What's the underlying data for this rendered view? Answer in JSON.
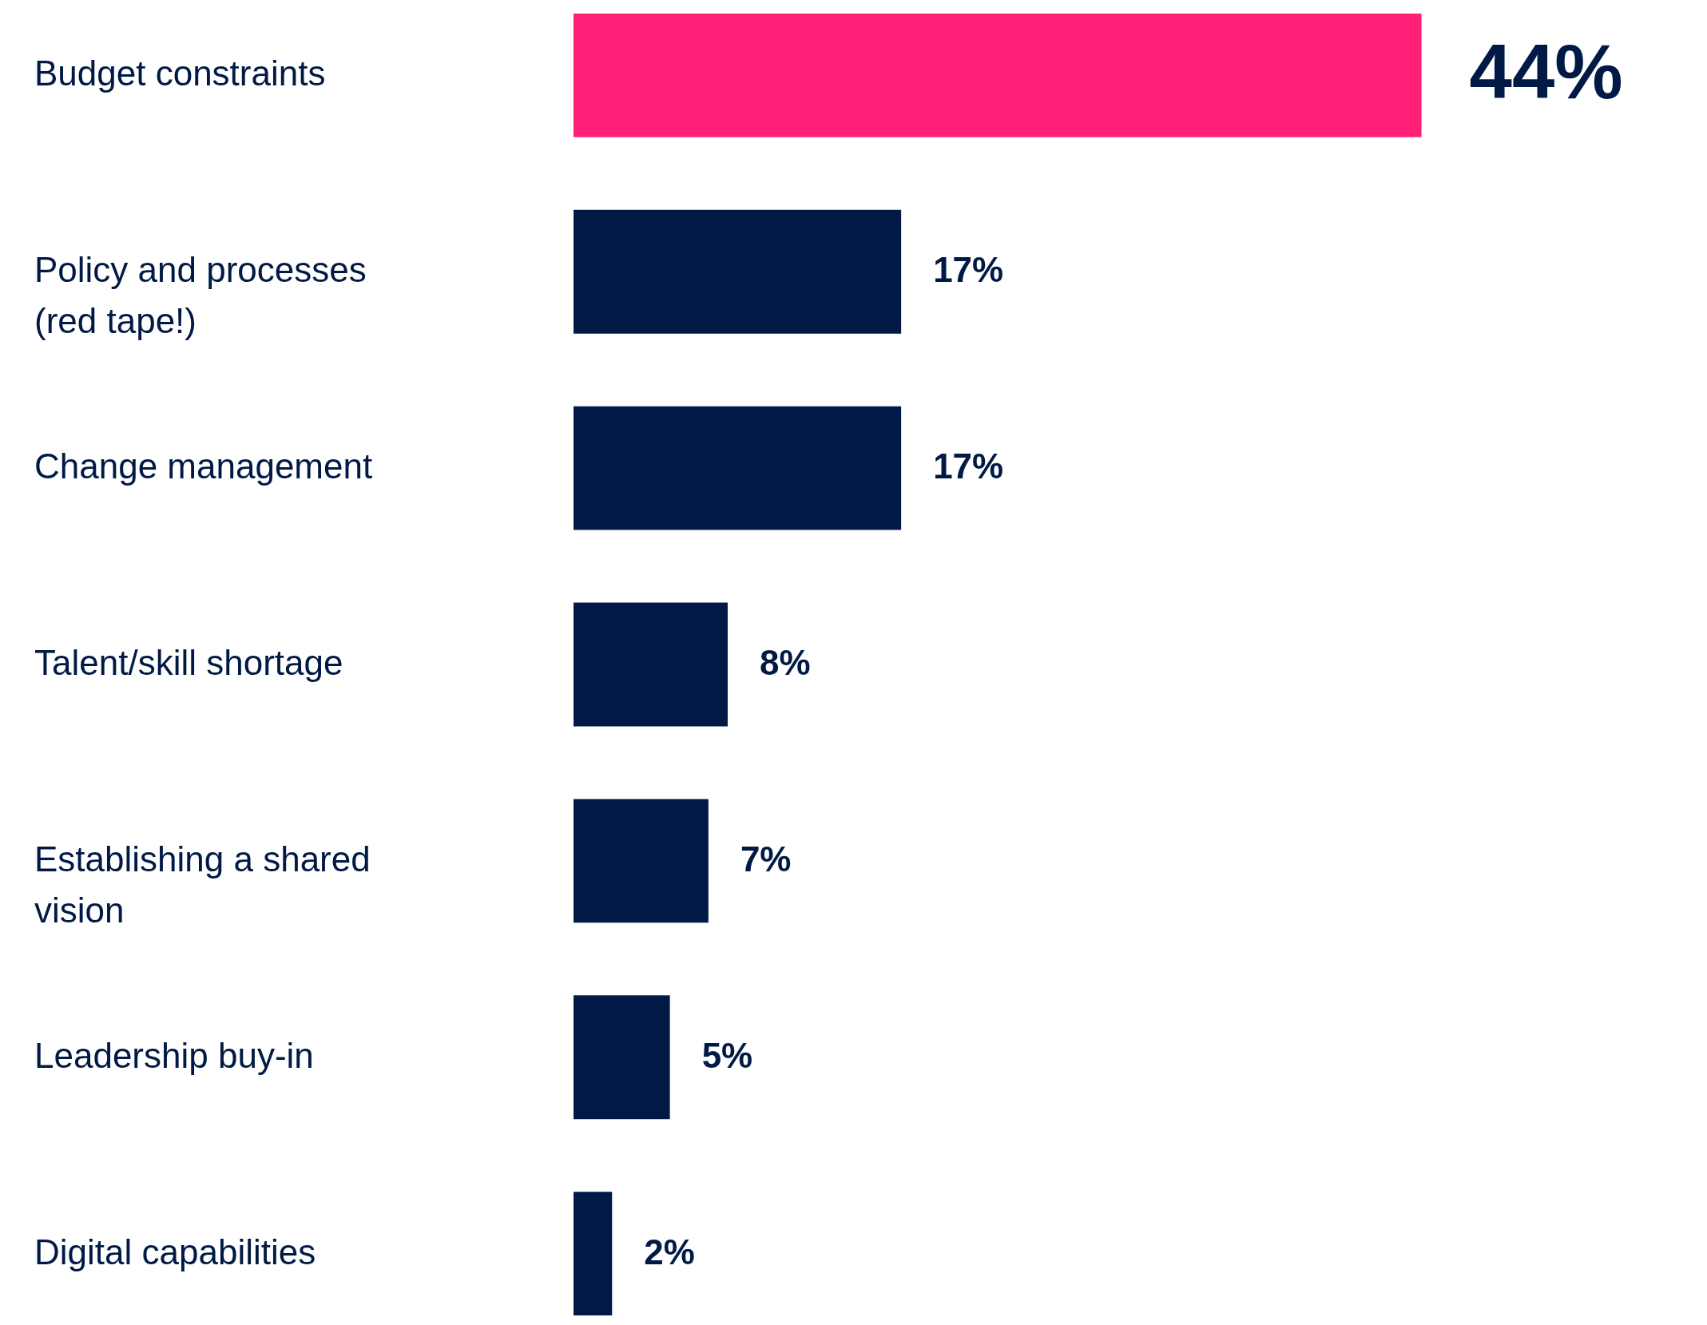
{
  "chart_data": {
    "type": "bar",
    "orientation": "horizontal",
    "categories": [
      "Budget constraints",
      "Policy and processes (red tape!)",
      "Change management",
      "Talent/skill shortage",
      "Establishing a shared vision",
      "Leadership buy-in",
      "Digital capabilities"
    ],
    "values": [
      44,
      17,
      17,
      8,
      7,
      5,
      2
    ],
    "colors": [
      "#ff1f77",
      "#001a45",
      "#001a45",
      "#001a45",
      "#001a45",
      "#001a45",
      "#001a45"
    ],
    "value_labels": [
      "44%",
      "17%",
      "17%",
      "8%",
      "7%",
      "5%",
      "2%"
    ]
  }
}
